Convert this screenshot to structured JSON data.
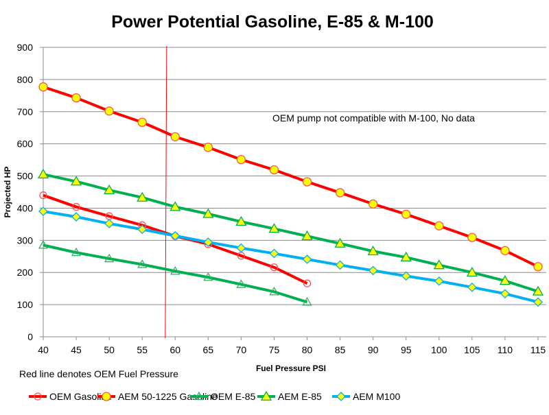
{
  "chart_data": {
    "type": "line",
    "title": "Power Potential Gasoline, E-85 & M-100",
    "xlabel": "Fuel Pressure PSI",
    "ylabel": "Projected HP",
    "xlim": [
      40,
      115
    ],
    "ylim": [
      0,
      900
    ],
    "xticks": [
      40,
      45,
      50,
      55,
      60,
      65,
      70,
      75,
      80,
      85,
      90,
      95,
      100,
      105,
      110,
      115
    ],
    "yticks": [
      0,
      100,
      200,
      300,
      400,
      500,
      600,
      700,
      800,
      900
    ],
    "grid": "horizontal",
    "legend": "bottom",
    "annotations": {
      "note": "OEM pump not compatible with M-100, No data",
      "footnote": "Red line denotes OEM Fuel Pressure",
      "oem_pressure_line_x": 58.5,
      "oem_pressure_line_color": "#ff0000"
    },
    "series": [
      {
        "name": "OEM Gasoline",
        "color": "#ff0000",
        "marker": "open-circle",
        "marker_fill": "none",
        "marker_stroke": "#ff5050",
        "x": [
          40,
          45,
          50,
          55,
          60,
          65,
          70,
          75,
          80
        ],
        "values": [
          440,
          404,
          375,
          347,
          313,
          288,
          252,
          216,
          166
        ]
      },
      {
        "name": "AEM 50-1225 Gasoline",
        "color": "#ff0000",
        "marker": "circle",
        "marker_fill": "#ffff00",
        "marker_stroke": "#ff5050",
        "x": [
          40,
          45,
          50,
          55,
          60,
          65,
          70,
          75,
          80,
          85,
          90,
          95,
          100,
          105,
          110,
          115
        ],
        "values": [
          777,
          743,
          702,
          667,
          622,
          589,
          551,
          519,
          482,
          448,
          413,
          381,
          345,
          309,
          268,
          218
        ]
      },
      {
        "name": "OEM E-85",
        "color": "#00b050",
        "marker": "open-triangle",
        "marker_fill": "none",
        "marker_stroke": "#30b060",
        "x": [
          40,
          45,
          50,
          55,
          60,
          65,
          70,
          75,
          80
        ],
        "values": [
          285,
          262,
          243,
          225,
          204,
          185,
          163,
          140,
          108
        ]
      },
      {
        "name": "AEM E-85",
        "color": "#00b050",
        "marker": "triangle",
        "marker_fill": "#ffff00",
        "marker_stroke": "#00b050",
        "x": [
          40,
          45,
          50,
          55,
          60,
          65,
          70,
          75,
          80,
          85,
          90,
          95,
          100,
          105,
          110,
          115
        ],
        "values": [
          505,
          483,
          456,
          433,
          404,
          382,
          358,
          336,
          313,
          290,
          266,
          247,
          223,
          200,
          174,
          141
        ]
      },
      {
        "name": "AEM M100",
        "color": "#00b0f0",
        "marker": "diamond",
        "marker_fill": "#ffff00",
        "marker_stroke": "#00b0f0",
        "x": [
          40,
          45,
          50,
          55,
          60,
          65,
          70,
          75,
          80,
          85,
          90,
          95,
          100,
          105,
          110,
          115
        ],
        "values": [
          390,
          373,
          352,
          334,
          314,
          294,
          276,
          259,
          241,
          223,
          206,
          189,
          173,
          154,
          134,
          108
        ]
      }
    ]
  }
}
